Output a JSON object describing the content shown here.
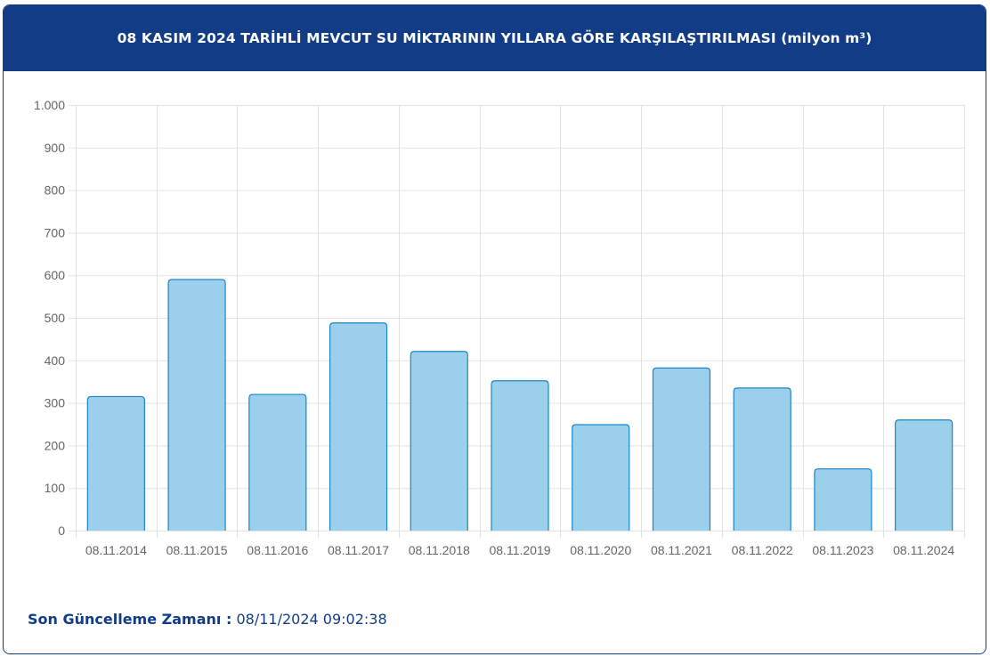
{
  "header": {
    "title": "08 KASIM 2024 TARİHLİ MEVCUT SU MİKTARININ YILLARA GÖRE KARŞILAŞTIRILMASI (milyon m³)"
  },
  "footer": {
    "label": "Son Güncelleme Zamanı :",
    "value": "08/11/2024 09:02:38"
  },
  "colors": {
    "header_bg": "#123d86",
    "bar_fill": "#9bd0ec",
    "bar_stroke": "#1a86c8",
    "grid": "#e3e3e3",
    "tick_text": "#666666"
  },
  "chart_data": {
    "type": "bar",
    "title": "08 KASIM 2024 TARİHLİ MEVCUT SU MİKTARININ YILLARA GÖRE KARŞILAŞTIRILMASI (milyon m³)",
    "categories": [
      "08.11.2014",
      "08.11.2015",
      "08.11.2016",
      "08.11.2017",
      "08.11.2018",
      "08.11.2019",
      "08.11.2020",
      "08.11.2021",
      "08.11.2022",
      "08.11.2023",
      "08.11.2024"
    ],
    "values": [
      315,
      590,
      320,
      488,
      421,
      352,
      249,
      382,
      335,
      145,
      260
    ],
    "ylim": [
      0,
      1000
    ],
    "yticks": [
      0,
      100,
      200,
      300,
      400,
      500,
      600,
      700,
      800,
      900,
      1000
    ],
    "ytick_labels": [
      "0",
      "100",
      "200",
      "300",
      "400",
      "500",
      "600",
      "700",
      "800",
      "900",
      "1.000"
    ],
    "xlabel": "",
    "ylabel": "",
    "grid": true,
    "legend": "none"
  }
}
